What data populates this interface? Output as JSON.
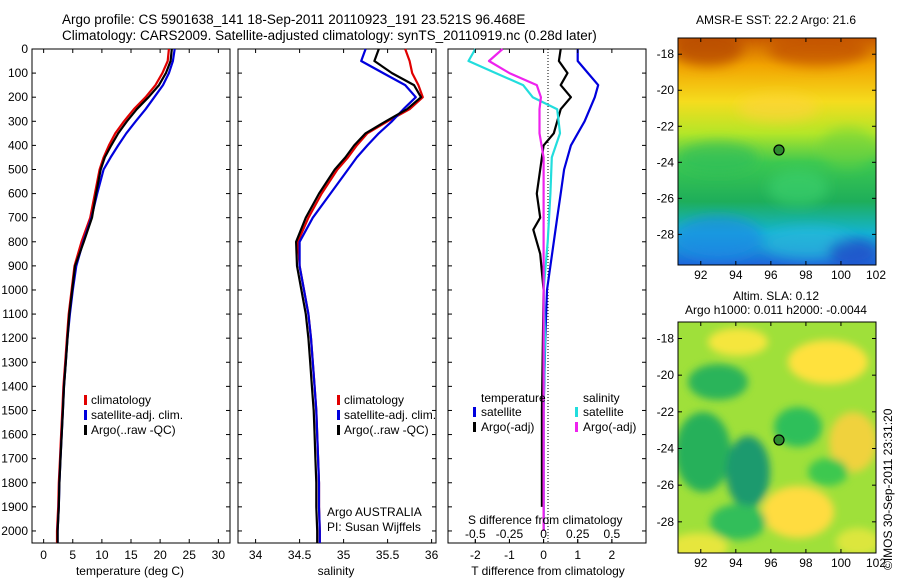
{
  "header": {
    "line1": "Argo profile: CS 5901638_141 18-Sep-2011 20110923_191 23.521S 96.468E",
    "line2": "Climatology: CARS2009. Satellite-adjusted climatology: synTS_20110919.nc (0.28d later)"
  },
  "stamp": "©IMOS 30-Sep-2011 23:31:20",
  "colors": {
    "climatology": "#e00000",
    "satellite": "#0000dd",
    "argo": "#000000",
    "sal_satellite": "#22dddd",
    "sal_argo": "#ee22ee"
  },
  "depth_ticks": [
    0,
    100,
    200,
    300,
    400,
    500,
    600,
    700,
    800,
    900,
    1000,
    1100,
    1200,
    1300,
    1400,
    1500,
    1600,
    1700,
    1800,
    1900,
    2000
  ],
  "panels": {
    "temperature": {
      "xlabel": "temperature (deg C)",
      "xticks": [
        "0",
        "5",
        "10",
        "15",
        "20",
        "25",
        "30"
      ],
      "legend": [
        "climatology",
        "satellite-adj. clim.",
        "Argo(..raw -QC)"
      ]
    },
    "salinity": {
      "xlabel": "salinity",
      "xticks": [
        "34",
        "34.5",
        "35",
        "35.5",
        "36"
      ],
      "legend": [
        "climatology",
        "satellite-adj. clim.",
        "Argo(..raw -QC)"
      ],
      "note1": "Argo AUSTRALIA",
      "note2": "PI: Susan Wijffels"
    },
    "difference": {
      "xlabel_bottom": "T difference from climatology",
      "xlabel_top": "S difference from climatology",
      "xticks_bottom": [
        "-2",
        "-1",
        "0",
        "1",
        "2"
      ],
      "xticks_top": [
        "-0.5",
        "-0.25",
        "0",
        "0.25",
        "0.5"
      ],
      "legend_temp_title": "temperature",
      "legend_sal_title": "salinity",
      "legend_temp": [
        "satellite",
        "Argo(-adj)"
      ],
      "legend_sal": [
        "satellite",
        "Argo(-adj)"
      ]
    },
    "sst_map": {
      "title": "AMSR-E SST: 22.2 Argo: 21.6",
      "yticks": [
        "-18",
        "-20",
        "-22",
        "-24",
        "-26",
        "-28"
      ],
      "xticks": [
        "92",
        "94",
        "96",
        "98",
        "100",
        "102"
      ]
    },
    "sla_map": {
      "title1": "Altim. SLA: 0.12",
      "title2": "Argo h1000: 0.011 h2000: -0.0044",
      "yticks": [
        "-18",
        "-20",
        "-22",
        "-24",
        "-26",
        "-28"
      ],
      "xticks": [
        "92",
        "94",
        "96",
        "98",
        "100",
        "102"
      ]
    }
  },
  "chart_data": [
    {
      "type": "line",
      "xlabel": "temperature (deg C)",
      "ylabel": "",
      "xlim": [
        -2,
        32
      ],
      "ylim": [
        2050,
        0
      ],
      "series": [
        {
          "name": "climatology",
          "color": "#e00000",
          "points": [
            [
              21.5,
              0
            ],
            [
              21.3,
              50
            ],
            [
              20.4,
              100
            ],
            [
              19.2,
              150
            ],
            [
              17.5,
              200
            ],
            [
              15.5,
              250
            ],
            [
              13.8,
              300
            ],
            [
              12.3,
              350
            ],
            [
              11.2,
              400
            ],
            [
              10.3,
              450
            ],
            [
              9.6,
              500
            ],
            [
              8.8,
              600
            ],
            [
              8.0,
              700
            ],
            [
              6.5,
              800
            ],
            [
              5.3,
              900
            ],
            [
              4.8,
              1000
            ],
            [
              4.3,
              1100
            ],
            [
              4.0,
              1200
            ],
            [
              3.7,
              1300
            ],
            [
              3.4,
              1400
            ],
            [
              3.2,
              1500
            ],
            [
              3.0,
              1600
            ],
            [
              2.8,
              1700
            ],
            [
              2.6,
              1800
            ],
            [
              2.5,
              1900
            ],
            [
              2.3,
              2000
            ],
            [
              2.3,
              2050
            ]
          ]
        },
        {
          "name": "satellite-adj. clim.",
          "color": "#0000dd",
          "points": [
            [
              22.5,
              0
            ],
            [
              22.2,
              50
            ],
            [
              21.5,
              100
            ],
            [
              20.5,
              150
            ],
            [
              19.0,
              200
            ],
            [
              17.5,
              250
            ],
            [
              15.8,
              300
            ],
            [
              14.2,
              350
            ],
            [
              12.8,
              400
            ],
            [
              11.5,
              450
            ],
            [
              10.3,
              500
            ],
            [
              9.2,
              600
            ],
            [
              8.2,
              700
            ],
            [
              6.8,
              800
            ],
            [
              5.6,
              900
            ],
            [
              5.0,
              1000
            ],
            [
              4.5,
              1100
            ],
            [
              4.1,
              1200
            ],
            [
              3.8,
              1300
            ],
            [
              3.5,
              1400
            ],
            [
              3.3,
              1500
            ],
            [
              3.1,
              1600
            ],
            [
              2.9,
              1700
            ],
            [
              2.7,
              1800
            ],
            [
              2.6,
              1900
            ],
            [
              2.4,
              2000
            ],
            [
              2.4,
              2050
            ]
          ]
        },
        {
          "name": "Argo(..raw -QC)",
          "color": "#000000",
          "points": [
            [
              22.0,
              0
            ],
            [
              21.8,
              50
            ],
            [
              21.0,
              100
            ],
            [
              19.8,
              150
            ],
            [
              18.0,
              200
            ],
            [
              16.0,
              250
            ],
            [
              14.3,
              300
            ],
            [
              12.8,
              350
            ],
            [
              11.6,
              400
            ],
            [
              10.5,
              450
            ],
            [
              9.8,
              500
            ],
            [
              9.0,
              600
            ],
            [
              8.3,
              700
            ],
            [
              6.9,
              800
            ],
            [
              5.4,
              900
            ],
            [
              4.9,
              1000
            ],
            [
              4.4,
              1100
            ],
            [
              4.1,
              1200
            ],
            [
              3.8,
              1300
            ],
            [
              3.5,
              1400
            ],
            [
              3.3,
              1500
            ],
            [
              3.1,
              1600
            ],
            [
              2.9,
              1700
            ],
            [
              2.7,
              1800
            ],
            [
              2.6,
              1900
            ],
            [
              2.4,
              2000
            ],
            [
              2.4,
              2050
            ]
          ]
        }
      ]
    },
    {
      "type": "line",
      "xlabel": "salinity",
      "ylabel": "",
      "xlim": [
        33.8,
        36.05
      ],
      "ylim": [
        2050,
        0
      ],
      "series": [
        {
          "name": "climatology",
          "color": "#e00000",
          "points": [
            [
              35.7,
              0
            ],
            [
              35.75,
              50
            ],
            [
              35.78,
              100
            ],
            [
              35.85,
              150
            ],
            [
              35.9,
              200
            ],
            [
              35.75,
              250
            ],
            [
              35.5,
              300
            ],
            [
              35.27,
              350
            ],
            [
              35.15,
              400
            ],
            [
              35.05,
              450
            ],
            [
              34.93,
              500
            ],
            [
              34.75,
              600
            ],
            [
              34.6,
              700
            ],
            [
              34.48,
              800
            ],
            [
              34.5,
              900
            ],
            [
              34.55,
              1000
            ],
            [
              34.6,
              1100
            ],
            [
              34.63,
              1200
            ],
            [
              34.65,
              1300
            ],
            [
              34.67,
              1400
            ],
            [
              34.69,
              1500
            ],
            [
              34.7,
              1600
            ],
            [
              34.71,
              1700
            ],
            [
              34.72,
              1800
            ],
            [
              34.72,
              1900
            ],
            [
              34.73,
              2000
            ],
            [
              34.73,
              2050
            ]
          ]
        },
        {
          "name": "satellite-adj. clim.",
          "color": "#0000dd",
          "points": [
            [
              35.25,
              0
            ],
            [
              35.2,
              50
            ],
            [
              35.45,
              100
            ],
            [
              35.7,
              150
            ],
            [
              35.82,
              200
            ],
            [
              35.68,
              250
            ],
            [
              35.55,
              300
            ],
            [
              35.4,
              350
            ],
            [
              35.27,
              400
            ],
            [
              35.15,
              450
            ],
            [
              35.05,
              500
            ],
            [
              34.85,
              600
            ],
            [
              34.65,
              700
            ],
            [
              34.5,
              800
            ],
            [
              34.5,
              900
            ],
            [
              34.55,
              1000
            ],
            [
              34.6,
              1100
            ],
            [
              34.63,
              1200
            ],
            [
              34.65,
              1300
            ],
            [
              34.67,
              1400
            ],
            [
              34.69,
              1500
            ],
            [
              34.7,
              1600
            ],
            [
              34.71,
              1700
            ],
            [
              34.72,
              1800
            ],
            [
              34.72,
              1900
            ],
            [
              34.73,
              2000
            ],
            [
              34.73,
              2050
            ]
          ]
        },
        {
          "name": "Argo(..raw -QC)",
          "color": "#000000",
          "points": [
            [
              35.4,
              0
            ],
            [
              35.35,
              50
            ],
            [
              35.55,
              100
            ],
            [
              35.8,
              150
            ],
            [
              35.88,
              200
            ],
            [
              35.72,
              250
            ],
            [
              35.48,
              300
            ],
            [
              35.25,
              350
            ],
            [
              35.12,
              400
            ],
            [
              35.02,
              450
            ],
            [
              34.9,
              500
            ],
            [
              34.72,
              600
            ],
            [
              34.57,
              700
            ],
            [
              34.46,
              800
            ],
            [
              34.47,
              900
            ],
            [
              34.52,
              1000
            ],
            [
              34.57,
              1100
            ],
            [
              34.6,
              1200
            ],
            [
              34.62,
              1300
            ],
            [
              34.64,
              1400
            ],
            [
              34.66,
              1500
            ],
            [
              34.67,
              1600
            ],
            [
              34.68,
              1700
            ],
            [
              34.69,
              1800
            ],
            [
              34.69,
              1900
            ],
            [
              34.7,
              2000
            ],
            [
              34.7,
              2050
            ]
          ]
        }
      ]
    },
    {
      "type": "line",
      "xlabel": "T difference from climatology",
      "ylabel": "",
      "xlim": [
        -2.8,
        3.0
      ],
      "ylim": [
        2050,
        0
      ],
      "series": [
        {
          "name": "satellite",
          "color": "#0000dd",
          "points": [
            [
              1.0,
              0
            ],
            [
              1.0,
              50
            ],
            [
              1.3,
              100
            ],
            [
              1.6,
              150
            ],
            [
              1.5,
              200
            ],
            [
              1.2,
              300
            ],
            [
              0.8,
              400
            ],
            [
              0.6,
              500
            ],
            [
              0.5,
              600
            ],
            [
              0.4,
              700
            ],
            [
              0.3,
              800
            ],
            [
              0.2,
              900
            ],
            [
              0.1,
              1000
            ],
            [
              0.05,
              1200
            ],
            [
              0.0,
              1500
            ],
            [
              0.0,
              2000
            ]
          ]
        },
        {
          "name": "Argo(-adj)",
          "color": "#000000",
          "points": [
            [
              0.5,
              0
            ],
            [
              0.45,
              50
            ],
            [
              0.7,
              100
            ],
            [
              0.5,
              150
            ],
            [
              0.8,
              200
            ],
            [
              0.5,
              250
            ],
            [
              0.3,
              350
            ],
            [
              0.0,
              400
            ],
            [
              -0.1,
              500
            ],
            [
              -0.2,
              600
            ],
            [
              -0.1,
              700
            ],
            [
              -0.3,
              750
            ],
            [
              -0.1,
              850
            ],
            [
              0.0,
              1000
            ],
            [
              -0.05,
              1500
            ],
            [
              -0.05,
              1900
            ]
          ]
        }
      ]
    },
    {
      "type": "line",
      "xlabel": "S difference from climatology",
      "ylabel": "",
      "xlim": [
        -0.7,
        0.75
      ],
      "ylim": [
        2050,
        0
      ],
      "series": [
        {
          "name": "satellite",
          "color": "#22dddd",
          "points": [
            [
              -0.5,
              0
            ],
            [
              -0.55,
              50
            ],
            [
              -0.35,
              100
            ],
            [
              -0.15,
              150
            ],
            [
              -0.08,
              200
            ],
            [
              0.1,
              250
            ],
            [
              0.12,
              350
            ],
            [
              0.06,
              450
            ],
            [
              0.05,
              600
            ],
            [
              0.03,
              800
            ],
            [
              0.0,
              1000
            ],
            [
              0.01,
              1200
            ],
            [
              0.0,
              1500
            ],
            [
              0.0,
              2000
            ]
          ]
        },
        {
          "name": "Argo(-adj)",
          "color": "#ee22ee",
          "points": [
            [
              -0.3,
              0
            ],
            [
              -0.4,
              50
            ],
            [
              -0.25,
              100
            ],
            [
              -0.05,
              150
            ],
            [
              -0.02,
              200
            ],
            [
              -0.03,
              250
            ],
            [
              -0.03,
              350
            ],
            [
              0.0,
              450
            ],
            [
              0.0,
              700
            ],
            [
              0.0,
              2000
            ]
          ]
        }
      ]
    }
  ]
}
